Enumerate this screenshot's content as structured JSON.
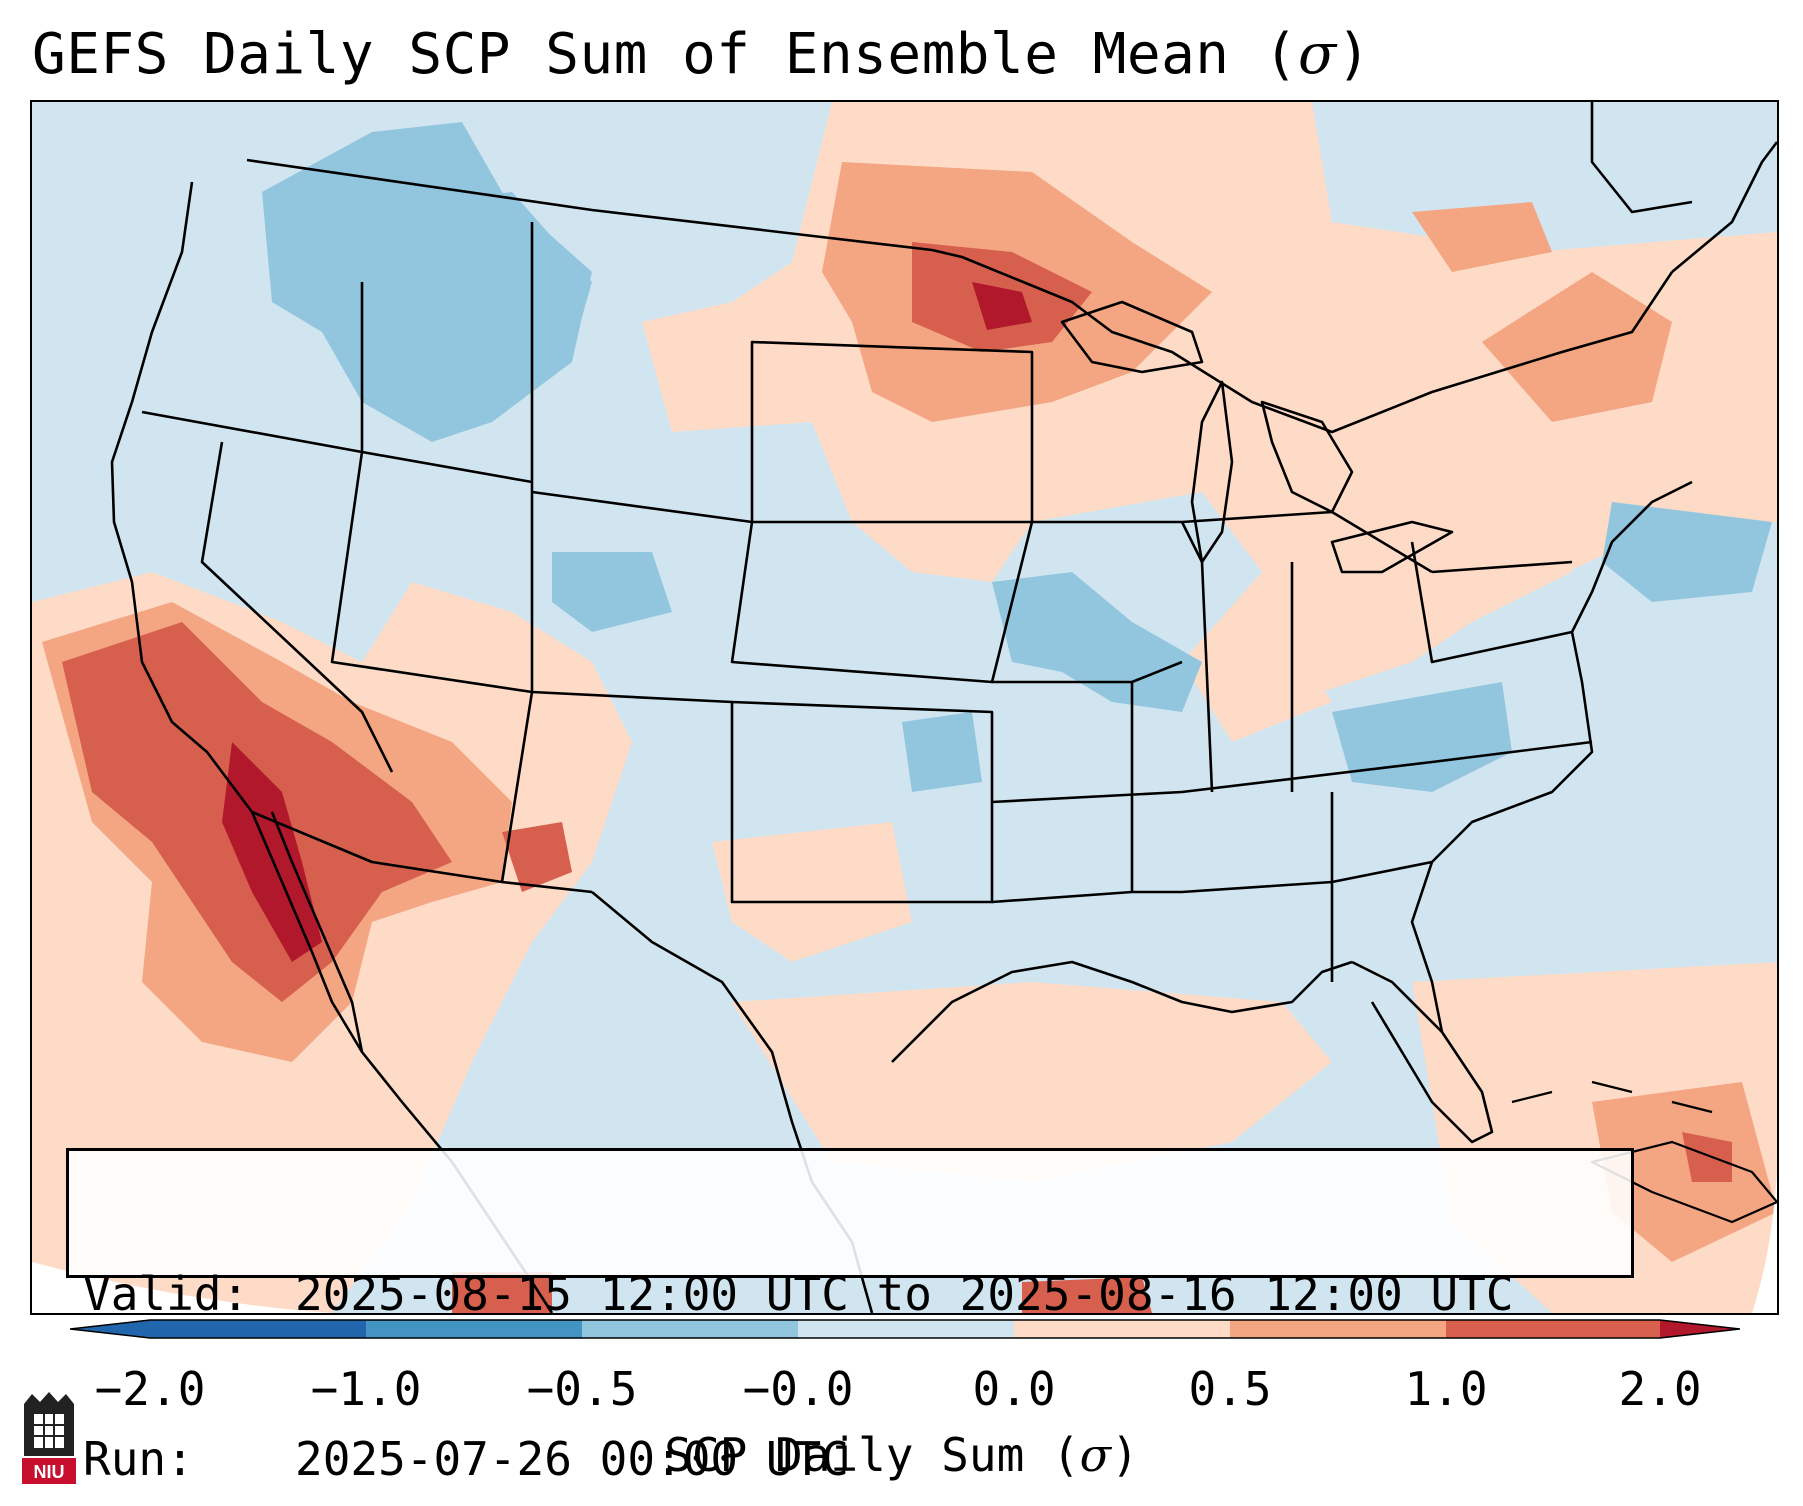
{
  "title": {
    "prefix": "GEFS Daily SCP Sum of Ensemble Mean (",
    "symbol": "σ",
    "suffix": ")"
  },
  "info": {
    "valid_label": "Valid:",
    "valid_value": "2025-08-15 12:00 UTC to 2025-08-16 12:00 UTC",
    "run_label": "Run:",
    "run_value": "2025-07-26 00:00 UTC"
  },
  "colorbar": {
    "label_prefix": "SCP Daily Sum (",
    "label_symbol": "σ",
    "label_suffix": ")",
    "ticks": [
      "−2.0",
      "−1.0",
      "−0.5",
      "−0.0",
      "0.0",
      "0.5",
      "1.0",
      "2.0"
    ],
    "colors": [
      "#2166ac",
      "#4393c3",
      "#92c5de",
      "#d1e5f0",
      "#ffffff",
      "#fddbc7",
      "#f4a582",
      "#d6604d",
      "#b2182b"
    ]
  },
  "logo": {
    "text": "NIU"
  },
  "colors": {
    "background_near_zero": "#d1e5f0",
    "state_lines": "#000000"
  }
}
